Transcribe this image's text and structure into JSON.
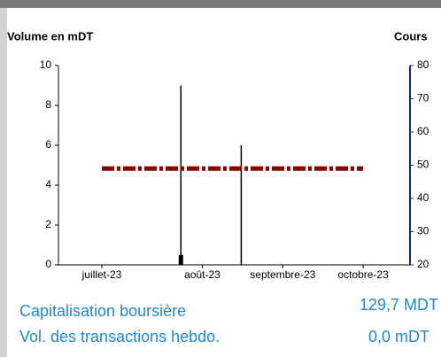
{
  "chart_data": {
    "type": "bar",
    "y_label": "Volume en mDT",
    "y2_label": "Cours",
    "categories": [
      "juillet-23",
      null,
      null,
      null,
      null,
      "août-23",
      null,
      null,
      null,
      "septembre-23",
      null,
      null,
      null,
      "octobre-23"
    ],
    "series": [
      {
        "color": "#000000",
        "values": [
          null,
          null,
          null,
          null,
          9,
          null,
          null,
          6,
          null,
          null,
          null,
          null,
          null,
          null
        ]
      },
      {
        "color": "#000000",
        "values": [
          null,
          null,
          null,
          null,
          0.5,
          null,
          null,
          null,
          null,
          null,
          null,
          null,
          null,
          null
        ]
      },
      {
        "color": "#8b0000",
        "axis": "y2",
        "values": [
          49,
          49,
          49,
          49,
          49,
          49,
          49,
          49,
          49,
          49,
          49,
          49,
          49,
          49
        ]
      }
    ],
    "ylim": [
      0,
      10
    ],
    "yticks": [
      0,
      2,
      4,
      6,
      8,
      10
    ],
    "y2lim": [
      20,
      80
    ],
    "y2ticks": [
      20,
      30,
      40,
      50,
      60,
      70,
      80
    ]
  },
  "stats": [
    {
      "label": "Capitalisation boursière",
      "value": "129,7 MDT"
    },
    {
      "label": "Vol. des transactions hebdo.",
      "value": "0,0 mDT"
    }
  ]
}
